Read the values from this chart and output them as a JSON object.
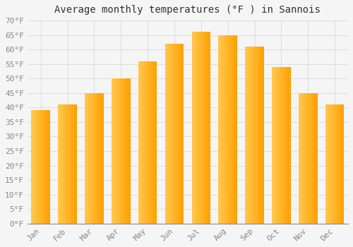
{
  "title": "Average monthly temperatures (°F ) in Sannois",
  "months": [
    "Jan",
    "Feb",
    "Mar",
    "Apr",
    "May",
    "Jun",
    "Jul",
    "Aug",
    "Sep",
    "Oct",
    "Nov",
    "Dec"
  ],
  "values": [
    39,
    41,
    45,
    50,
    56,
    62,
    66,
    65,
    61,
    54,
    45,
    41
  ],
  "bar_color_left": "#FFD966",
  "bar_color_right": "#FFA500",
  "ylim": [
    0,
    70
  ],
  "yticks": [
    0,
    5,
    10,
    15,
    20,
    25,
    30,
    35,
    40,
    45,
    50,
    55,
    60,
    65,
    70
  ],
  "background_color": "#f5f5f5",
  "grid_color": "#dddddd",
  "title_fontsize": 10,
  "tick_fontsize": 8,
  "font_family": "monospace"
}
